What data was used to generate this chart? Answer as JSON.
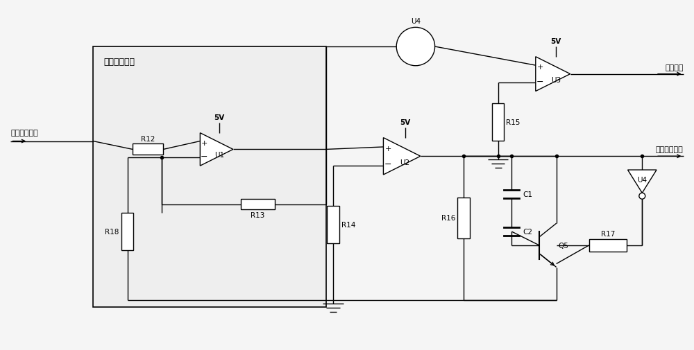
{
  "bg_color": "#ffffff",
  "fig_bg": "#f5f5f5",
  "line_color": "#000000",
  "figsize": [
    10.0,
    5.06
  ],
  "dpi": 100,
  "box_fill": "#eeeeee",
  "box_label": "信号放大电路",
  "input_label": "电压采集信号",
  "output1_label": "跳闸信号",
  "output2_label": "限流启动信号",
  "supply_5v": "5V"
}
